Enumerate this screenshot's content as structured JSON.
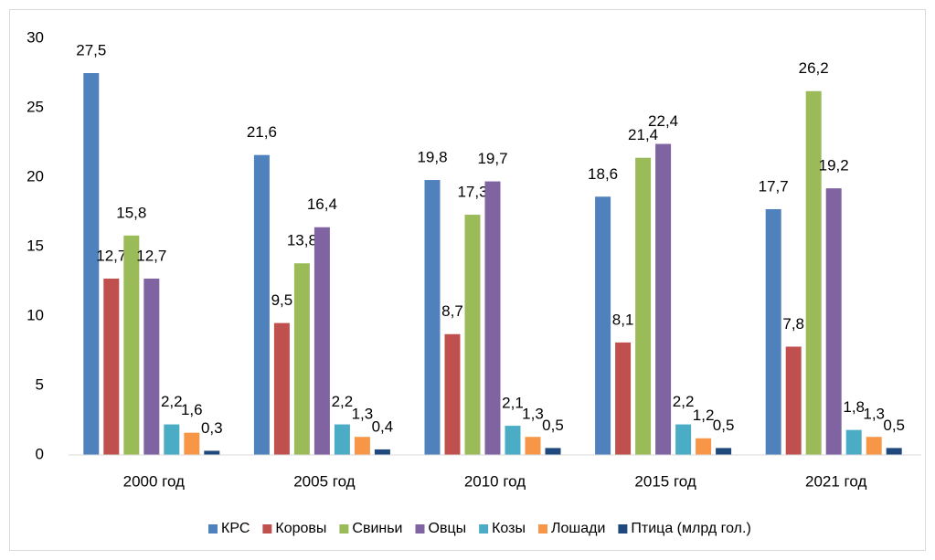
{
  "chart_data": {
    "type": "bar",
    "categories": [
      "2000 год",
      "2005 год",
      "2010 год",
      "2015 год",
      "2021 год"
    ],
    "series": [
      {
        "name": "КРС",
        "color": "#4f81bd",
        "values": [
          27.5,
          21.6,
          19.8,
          18.6,
          17.7
        ],
        "value_labels": [
          "27,5",
          "21,6",
          "19,8",
          "18,6",
          "17,7"
        ]
      },
      {
        "name": "Коровы",
        "color": "#c0504d",
        "values": [
          12.7,
          9.5,
          8.7,
          8.1,
          7.8
        ],
        "value_labels": [
          "12,7",
          "9,5",
          "8,7",
          "8,1",
          "7,8"
        ]
      },
      {
        "name": "Свиньи",
        "color": "#9bbb59",
        "values": [
          15.8,
          13.8,
          17.3,
          21.4,
          26.2
        ],
        "value_labels": [
          "15,8",
          "13,8",
          "17,3",
          "21,4",
          "26,2"
        ]
      },
      {
        "name": "Овцы",
        "color": "#8064a2",
        "values": [
          12.7,
          16.4,
          19.7,
          22.4,
          19.2
        ],
        "value_labels": [
          "12,7",
          "16,4",
          "19,7",
          "22,4",
          "19,2"
        ]
      },
      {
        "name": "Козы",
        "color": "#4bacc6",
        "values": [
          2.2,
          2.2,
          2.1,
          2.2,
          1.8
        ],
        "value_labels": [
          "2,2",
          "2,2",
          "2,1",
          "2,2",
          "1,8"
        ]
      },
      {
        "name": "Лошади",
        "color": "#f79646",
        "values": [
          1.6,
          1.3,
          1.3,
          1.2,
          1.3
        ],
        "value_labels": [
          "1,6",
          "1,3",
          "1,3",
          "1,2",
          "1,3"
        ]
      },
      {
        "name": "Птица (млрд гол.)",
        "color": "#1f497d",
        "values": [
          0.3,
          0.4,
          0.5,
          0.5,
          0.5
        ],
        "value_labels": [
          "0,3",
          "0,4",
          "0,5",
          "0,5",
          "0,5"
        ]
      }
    ],
    "ylim": [
      0,
      30
    ],
    "yticks": [
      0,
      5,
      10,
      15,
      20,
      25,
      30
    ],
    "grid": false,
    "legend": "bottom"
  }
}
